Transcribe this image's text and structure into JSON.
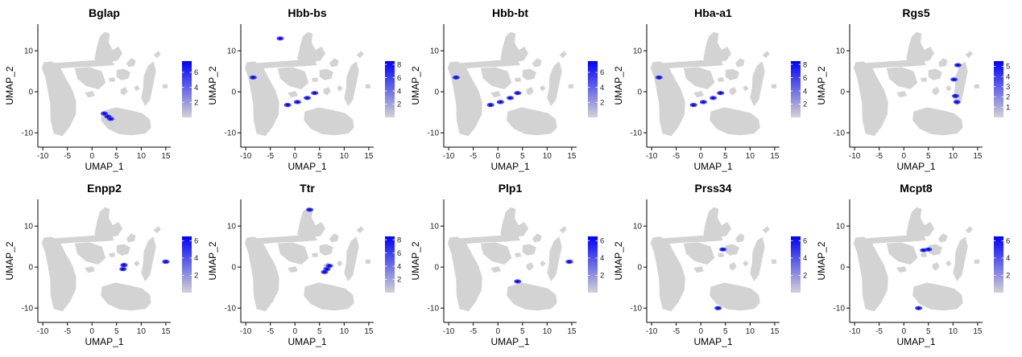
{
  "figure": {
    "xlabel": "UMAP_1",
    "ylabel": "UMAP_2",
    "xticks": [
      -10,
      -5,
      0,
      5,
      10,
      15
    ],
    "yticks": [
      -10,
      0,
      10
    ],
    "xlim": [
      -11,
      16
    ],
    "ylim": [
      -13.5,
      16.5
    ],
    "low_color": "#d3d3d3",
    "high_color": "#0000ff"
  },
  "chart_data": [
    {
      "type": "scatter",
      "title": "Bglap",
      "legend_ticks": [
        2,
        4,
        6
      ],
      "legend_range": [
        0,
        7.5
      ],
      "hotspots": [
        [
          2.5,
          -5.3
        ],
        [
          3.2,
          -6.0
        ],
        [
          3.8,
          -6.6
        ]
      ]
    },
    {
      "type": "scatter",
      "title": "Hbb-bs",
      "legend_ticks": [
        2,
        4,
        6,
        8
      ],
      "legend_range": [
        0,
        8.5
      ],
      "hotspots": [
        [
          -1.5,
          -3.2
        ],
        [
          0.5,
          -2.5
        ],
        [
          2.5,
          -1.5
        ],
        [
          4.0,
          -0.3
        ],
        [
          -8.5,
          3.5
        ],
        [
          -3.0,
          13.0
        ]
      ]
    },
    {
      "type": "scatter",
      "title": "Hbb-bt",
      "legend_ticks": [
        2,
        4,
        6
      ],
      "legend_range": [
        0,
        7.5
      ],
      "hotspots": [
        [
          -1.5,
          -3.2
        ],
        [
          0.5,
          -2.5
        ],
        [
          2.5,
          -1.5
        ],
        [
          4.0,
          -0.3
        ],
        [
          -8.5,
          3.5
        ]
      ]
    },
    {
      "type": "scatter",
      "title": "Hba-a1",
      "legend_ticks": [
        2,
        4,
        6,
        8
      ],
      "legend_range": [
        0,
        8.5
      ],
      "hotspots": [
        [
          -1.5,
          -3.2
        ],
        [
          0.5,
          -2.5
        ],
        [
          2.5,
          -1.5
        ],
        [
          4.0,
          -0.3
        ],
        [
          -8.5,
          3.5
        ]
      ]
    },
    {
      "type": "scatter",
      "title": "Rgs5",
      "legend_ticks": [
        1,
        2,
        3,
        4,
        5
      ],
      "legend_range": [
        0,
        5.5
      ],
      "hotspots": [
        [
          10.5,
          -1.0
        ],
        [
          10.8,
          -2.5
        ],
        [
          10.2,
          3.0
        ],
        [
          11.0,
          6.5
        ]
      ]
    },
    {
      "type": "scatter",
      "title": "Enpp2",
      "legend_ticks": [
        2,
        4,
        6
      ],
      "legend_range": [
        0,
        6.5
      ],
      "hotspots": [
        [
          6.5,
          0.5
        ],
        [
          6.3,
          -0.5
        ],
        [
          15.0,
          1.3
        ]
      ]
    },
    {
      "type": "scatter",
      "title": "Ttr",
      "legend_ticks": [
        2,
        4,
        6,
        8
      ],
      "legend_range": [
        0,
        8.5
      ],
      "hotspots": [
        [
          7.0,
          0.3
        ],
        [
          6.5,
          -0.5
        ],
        [
          6.0,
          -1.2
        ],
        [
          3.0,
          14.0
        ]
      ]
    },
    {
      "type": "scatter",
      "title": "Plp1",
      "legend_ticks": [
        2,
        4,
        6
      ],
      "legend_range": [
        0,
        6.5
      ],
      "hotspots": [
        [
          14.5,
          1.3
        ],
        [
          4.0,
          -3.5
        ]
      ]
    },
    {
      "type": "scatter",
      "title": "Prss34",
      "legend_ticks": [
        2,
        4,
        6
      ],
      "legend_range": [
        0,
        6.5
      ],
      "hotspots": [
        [
          4.5,
          4.3
        ],
        [
          3.5,
          -10.0
        ]
      ]
    },
    {
      "type": "scatter",
      "title": "Mcpt8",
      "legend_ticks": [
        2,
        4,
        6
      ],
      "legend_range": [
        0,
        6.5
      ],
      "hotspots": [
        [
          5.0,
          4.3
        ],
        [
          4.0,
          4.1
        ],
        [
          3.0,
          -10.0
        ]
      ]
    }
  ]
}
